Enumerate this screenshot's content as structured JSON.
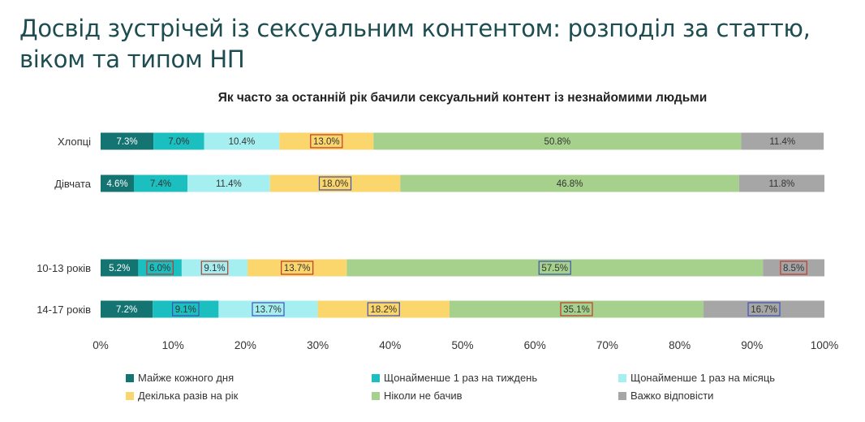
{
  "header": {
    "title": "Досвід зустрічей із сексуальним контентом: розподіл за статтю, віком та типом НП"
  },
  "chart_data": {
    "type": "bar",
    "orientation": "horizontal",
    "stacked": true,
    "title": "Як часто за останній рік бачили сексуальний контент із незнайомими людьми",
    "categories": [
      "Хлопці",
      "Дівчата",
      "10-13 років",
      "14-17 років"
    ],
    "xlim": [
      0,
      100
    ],
    "x_ticks": [
      "0%",
      "10%",
      "20%",
      "30%",
      "40%",
      "50%",
      "60%",
      "70%",
      "80%",
      "90%",
      "100%"
    ],
    "grid": false,
    "legend_position": "bottom",
    "series": [
      {
        "name": "Майже кожного дня",
        "color": "#137472",
        "values": [
          7.3,
          4.6,
          5.2,
          7.2
        ],
        "labels": [
          "7.3%",
          "4.6%",
          "5.2%",
          "7.2%"
        ]
      },
      {
        "name": "Щонайменше 1 раз на тиждень",
        "color": "#1cbfbf",
        "values": [
          7.0,
          7.4,
          6.0,
          9.1
        ],
        "labels": [
          "7.0%",
          "7.4%",
          "6.0%",
          "9.1%"
        ]
      },
      {
        "name": "Щонайменше 1 раз на місяць",
        "color": "#a6eff0",
        "values": [
          10.4,
          11.4,
          9.1,
          13.7
        ],
        "labels": [
          "10.4%",
          "11.4%",
          "9.1%",
          "13.7%"
        ]
      },
      {
        "name": "Декілька разів на рік",
        "color": "#fad66c",
        "values": [
          13.0,
          18.0,
          13.7,
          18.2
        ],
        "labels": [
          "13.0%",
          "18.0%",
          "13.7%",
          "18.2%"
        ]
      },
      {
        "name": "Ніколи не бачив",
        "color": "#a6d18c",
        "values": [
          50.8,
          46.8,
          57.5,
          35.1
        ],
        "labels": [
          "50.8%",
          "46.8%",
          "57.5%",
          "35.1%"
        ]
      },
      {
        "name": "Важко відповісти",
        "color": "#a6a6a6",
        "values": [
          11.4,
          11.8,
          8.5,
          16.7
        ],
        "labels": [
          "11.4%",
          "11.8%",
          "8.5%",
          "16.7%"
        ]
      }
    ],
    "label_boxes": [
      [
        null,
        null,
        null,
        "#c0392b",
        null,
        null
      ],
      [
        null,
        null,
        null,
        "#3f51b5",
        null,
        null
      ],
      [
        null,
        "#c0392b",
        "#c0392b",
        "#c0392b",
        "#3f51b5",
        "#c0392b"
      ],
      [
        null,
        "#3f51b5",
        "#3f51b5",
        "#3f51b5",
        "#c0392b",
        "#3f51b5"
      ]
    ]
  }
}
